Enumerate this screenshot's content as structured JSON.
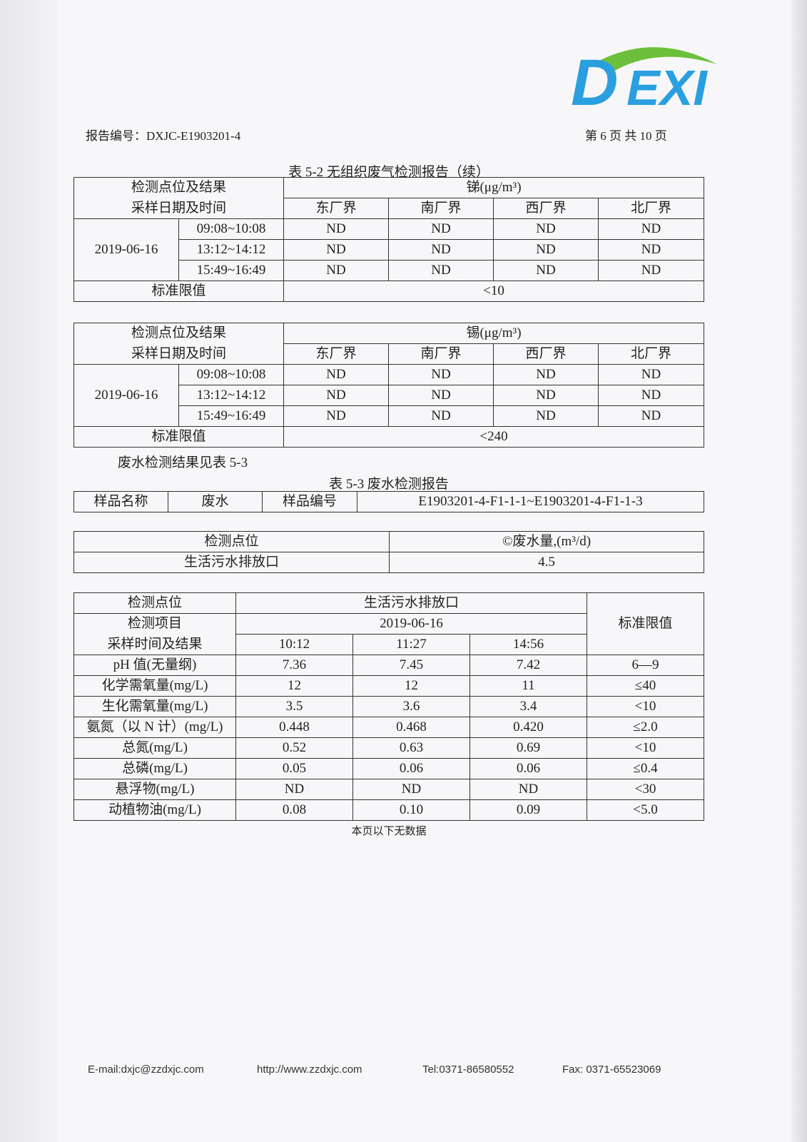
{
  "header": {
    "report_no": "报告编号：DXJC-E1903201-4",
    "page_info": "第 6 页 共 10 页",
    "logo_text": "DEXI"
  },
  "table1": {
    "caption": "表 5-2 无组织废气检测报告（续）",
    "corner_top": "检测点位及结果",
    "corner_bottom": "采样日期及时间",
    "param": "锑(μg/m³)",
    "columns": [
      "东厂界",
      "南厂界",
      "西厂界",
      "北厂界"
    ],
    "date": "2019-06-16",
    "rows": [
      {
        "time": "09:08~10:08",
        "values": [
          "ND",
          "ND",
          "ND",
          "ND"
        ]
      },
      {
        "time": "13:12~14:12",
        "values": [
          "ND",
          "ND",
          "ND",
          "ND"
        ]
      },
      {
        "time": "15:49~16:49",
        "values": [
          "ND",
          "ND",
          "ND",
          "ND"
        ]
      }
    ],
    "limit_label": "标准限值",
    "limit": "<10"
  },
  "table2": {
    "corner_top": "检测点位及结果",
    "corner_bottom": "采样日期及时间",
    "param": "锡(μg/m³)",
    "columns": [
      "东厂界",
      "南厂界",
      "西厂界",
      "北厂界"
    ],
    "date": "2019-06-16",
    "rows": [
      {
        "time": "09:08~10:08",
        "values": [
          "ND",
          "ND",
          "ND",
          "ND"
        ]
      },
      {
        "time": "13:12~14:12",
        "values": [
          "ND",
          "ND",
          "ND",
          "ND"
        ]
      },
      {
        "time": "15:49~16:49",
        "values": [
          "ND",
          "ND",
          "ND",
          "ND"
        ]
      }
    ],
    "limit_label": "标准限值",
    "limit": "<240"
  },
  "note": "废水检测结果见表 5-3",
  "table3": {
    "caption": "表 5-3 废水检测报告",
    "sample_name_label": "样品名称",
    "sample_name": "废水",
    "sample_no_label": "样品编号",
    "sample_no": "E1903201-4-F1-1-1~E1903201-4-F1-1-3"
  },
  "flow": {
    "point_label": "检测点位",
    "flow_label": "©废水量,(m³/d)",
    "point": "生活污水排放口",
    "value": "4.5"
  },
  "water": {
    "point_label": "检测点位",
    "item_label": "检测项目",
    "time_label": "采样时间及结果",
    "point": "生活污水排放口",
    "date": "2019-06-16",
    "times": [
      "10:12",
      "11:27",
      "14:56"
    ],
    "limit_label": "标准限值",
    "rows": [
      {
        "item": "pH 值(无量纲)",
        "values": [
          "7.36",
          "7.45",
          "7.42"
        ],
        "limit": "6—9"
      },
      {
        "item": "化学需氧量(mg/L)",
        "values": [
          "12",
          "12",
          "11"
        ],
        "limit": "≤40"
      },
      {
        "item": "生化需氧量(mg/L)",
        "values": [
          "3.5",
          "3.6",
          "3.4"
        ],
        "limit": "<10"
      },
      {
        "item": "氨氮（以 N 计）(mg/L)",
        "values": [
          "0.448",
          "0.468",
          "0.420"
        ],
        "limit": "≤2.0"
      },
      {
        "item": "总氮(mg/L)",
        "values": [
          "0.52",
          "0.63",
          "0.69"
        ],
        "limit": "<10"
      },
      {
        "item": "总磷(mg/L)",
        "values": [
          "0.05",
          "0.06",
          "0.06"
        ],
        "limit": "≤0.4"
      },
      {
        "item": "悬浮物(mg/L)",
        "values": [
          "ND",
          "ND",
          "ND"
        ],
        "limit": "<30"
      },
      {
        "item": "动植物油(mg/L)",
        "values": [
          "0.08",
          "0.10",
          "0.09"
        ],
        "limit": "<5.0"
      }
    ]
  },
  "end_note": "本页以下无数据",
  "footer": {
    "email": "E-mail:dxjc@zzdxjc.com",
    "web": "http://www.zzdxjc.com",
    "tel": "Tel:0371-86580552",
    "fax": "Fax: 0371-65523069"
  },
  "colors": {
    "logo_blue": "#2a9fe0",
    "logo_green": "#6cbf3a"
  }
}
